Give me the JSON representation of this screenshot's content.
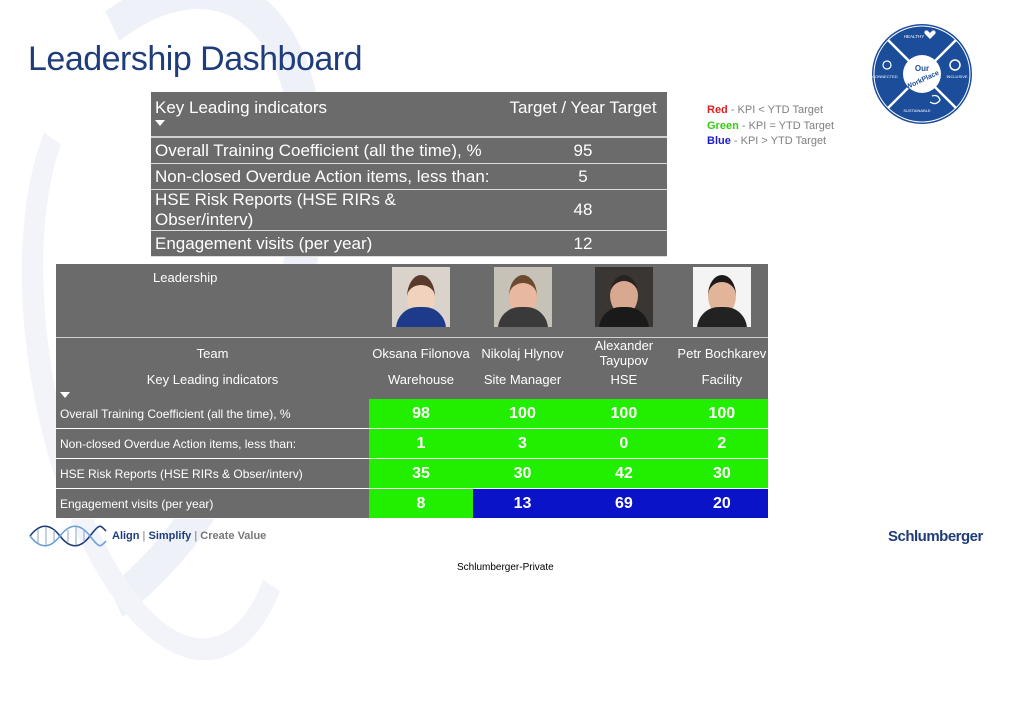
{
  "title": "Leadership Dashboard",
  "targets": {
    "header_label": "Key Leading indicators",
    "header_value": "Target / Year Target",
    "rows": [
      {
        "label": "Overall Training Coefficient (all the time), %",
        "value": "95"
      },
      {
        "label": "Non-closed Overdue Action items, less than:",
        "value": "5"
      },
      {
        "label": "HSE Risk Reports (HSE RIRs & Obser/interv)",
        "value": "48"
      },
      {
        "label": "Engagement visits (per year)",
        "value": "12"
      }
    ]
  },
  "legend": {
    "red_word": "Red",
    "red_text": " - KPI < YTD Target",
    "red_color": "#e02020",
    "green_word": "Green",
    "green_text": " - KPI = YTD Target",
    "green_color": "#33cc11",
    "blue_word": "Blue",
    "blue_text": " - KPI > YTD Target",
    "blue_color": "#1a1acc"
  },
  "logo": {
    "center_top": "Our",
    "center_bottom": "WorkPlace",
    "healthy": "HEALTHY",
    "connected": "CONNECTED",
    "inclusive": "INCLUSIVE",
    "sustainable": "SUSTAINABLE"
  },
  "leadership": {
    "header": "Leadership",
    "team_label": "Team",
    "kli_label": "Key Leading indicators",
    "people": [
      {
        "name": "Oksana Filonova",
        "role": "Warehouse"
      },
      {
        "name": "Nikolaj Hlynov",
        "role": "Site Manager"
      },
      {
        "name": "Alexander Tayupov",
        "role": "HSE"
      },
      {
        "name": "Petr Bochkarev",
        "role": "Facility"
      }
    ],
    "rows": [
      {
        "label": "Overall Training Coefficient (all the time), %",
        "values": [
          "98",
          "100",
          "100",
          "100"
        ],
        "status": [
          "green",
          "green",
          "green",
          "green"
        ]
      },
      {
        "label": "Non-closed Overdue Action items, less than:",
        "values": [
          "1",
          "3",
          "0",
          "2"
        ],
        "status": [
          "green",
          "green",
          "green",
          "green"
        ]
      },
      {
        "label": "HSE Risk Reports (HSE RIRs & Obser/interv)",
        "values": [
          "35",
          "30",
          "42",
          "30"
        ],
        "status": [
          "green",
          "green",
          "green",
          "green"
        ]
      },
      {
        "label": "Engagement visits (per year)",
        "values": [
          "8",
          "13",
          "69",
          "20"
        ],
        "status": [
          "green",
          "blue",
          "blue",
          "blue"
        ]
      }
    ]
  },
  "footer": {
    "align": "Align",
    "sep1": " | ",
    "simplify": "Simplify",
    "sep2": " | ",
    "create": "Create Value",
    "brand": "Schlumberger",
    "private": "Schlumberger-Private"
  },
  "colors": {
    "title": "#1f3d7a",
    "table_bg": "#6b6b6b",
    "green": "#22ee00",
    "blue": "#0a13c8"
  }
}
